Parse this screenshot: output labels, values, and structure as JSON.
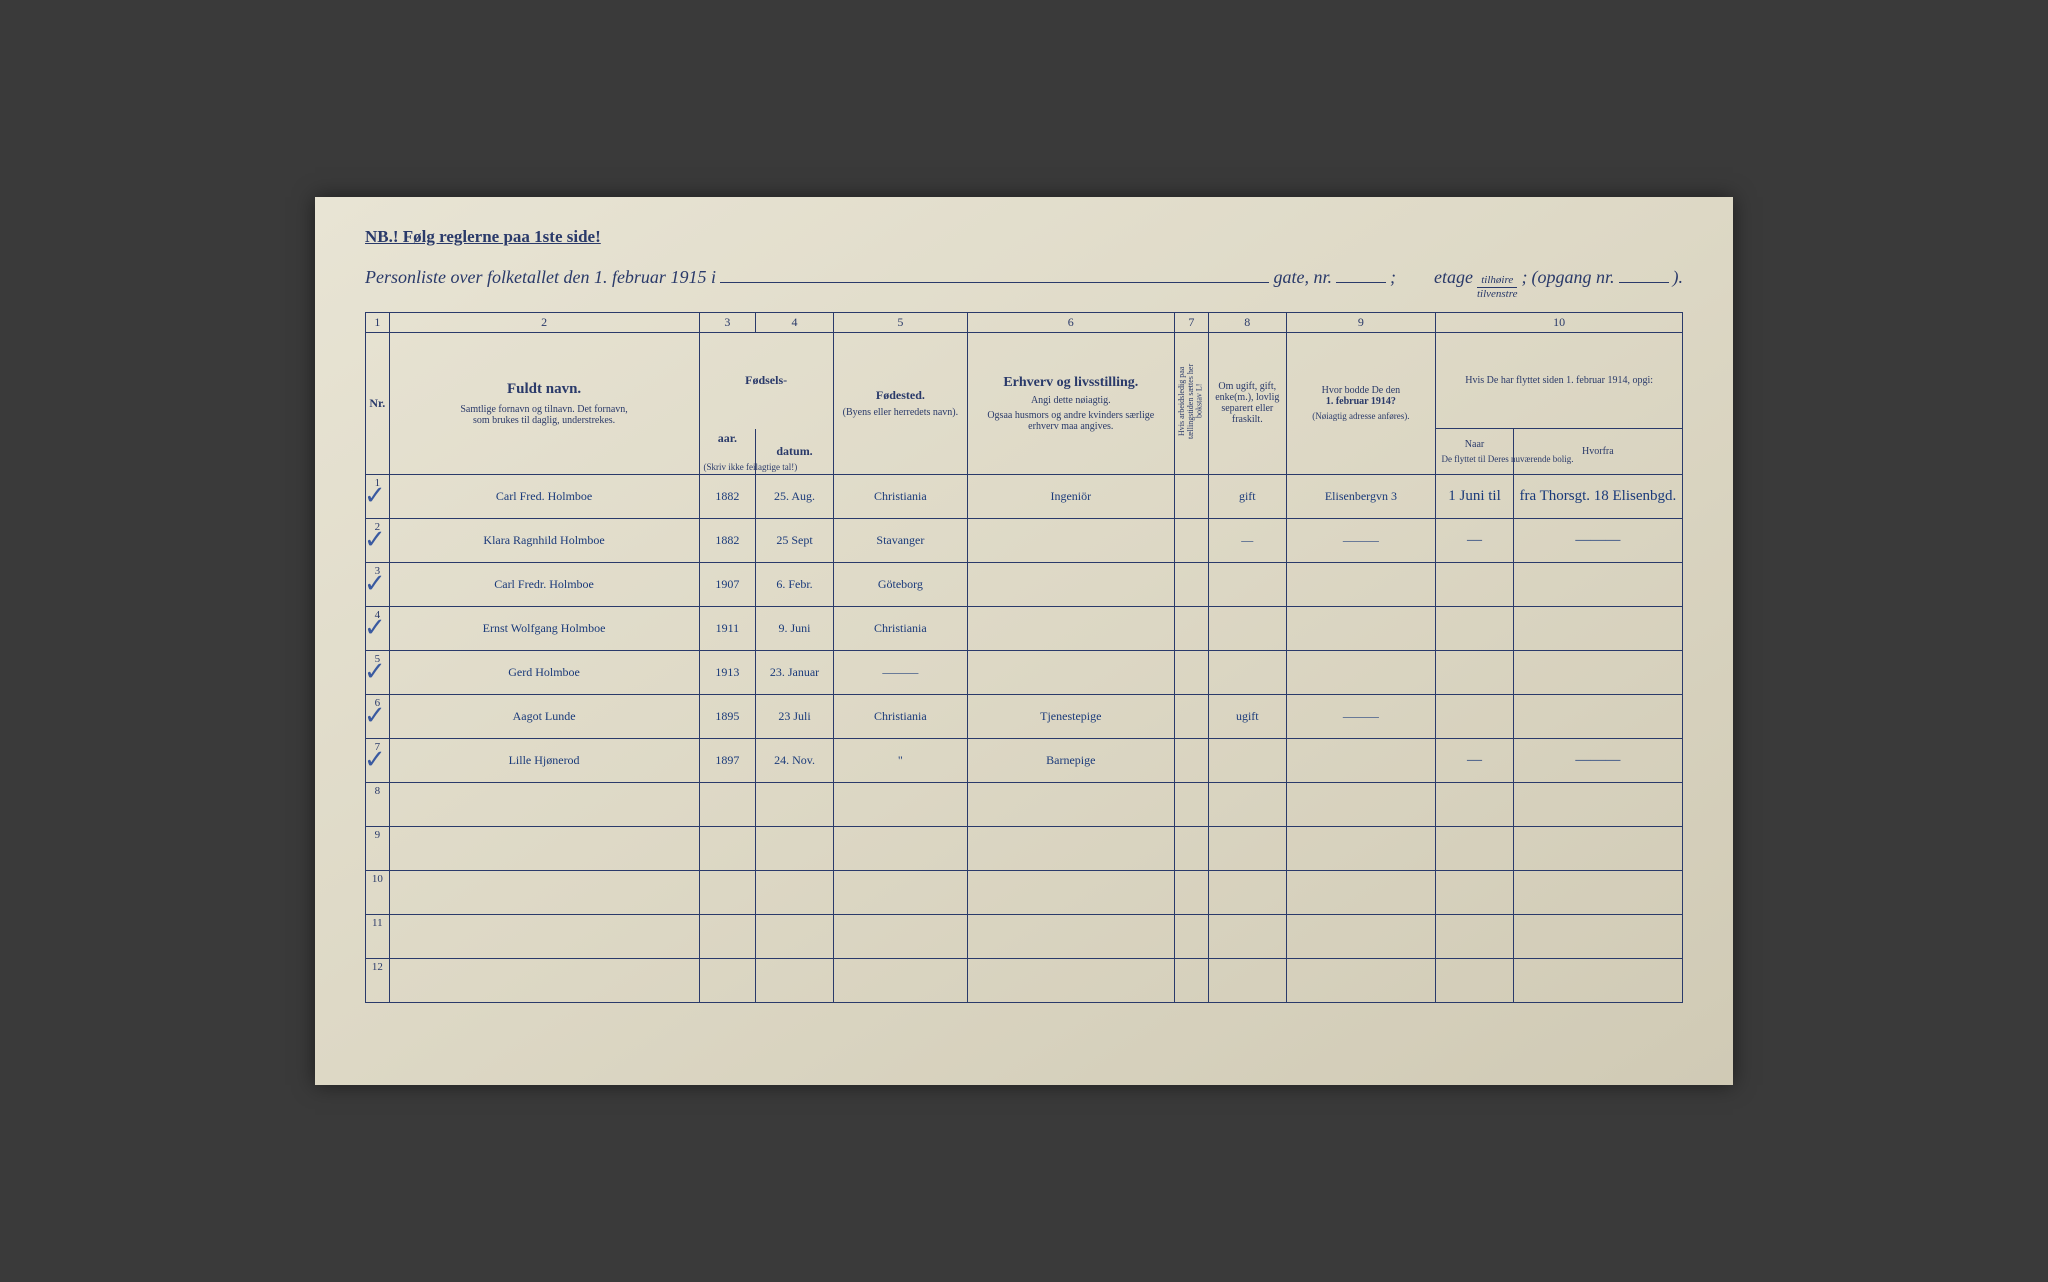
{
  "header": {
    "nb": "NB.! Følg reglerne paa 1ste side!",
    "title_prefix": "Personliste over folketallet den 1. februar 1915 i",
    "gate_label": "gate, nr.",
    "etage_label": "etage",
    "frac_top": "tilhøire",
    "frac_bot": "tilvenstre",
    "opgang_label": "(opgang nr.",
    "opgang_close": ")."
  },
  "columns": {
    "c1": "1",
    "c2": "2",
    "c3": "3",
    "c4": "4",
    "c5": "5",
    "c6": "6",
    "c7": "7",
    "c8": "8",
    "c9": "9",
    "c10": "10",
    "name_head": "Fuldt navn.",
    "name_sub1": "Samtlige fornavn og tilnavn.   Det fornavn,",
    "name_sub2": "som brukes til daglig, understrekes.",
    "birth_head": "Fødsels-",
    "birth_year": "aar.",
    "birth_date": "datum.",
    "birth_note": "(Skriv ikke feilagtige tal!)",
    "birthplace_head": "Fødested.",
    "birthplace_sub": "(Byens eller herredets navn).",
    "occ_head": "Erhverv og livsstilling.",
    "occ_sub1": "Angi dette nøiagtig.",
    "occ_sub2": "Ogsaa husmors og andre kvinders særlige erhverv maa angives.",
    "c7_text": "Hvis arbeidsledig paa tællingstiden sættes her bokstav L!",
    "c8_text1": "Om ugift, gift, enke(m.), lovlig separert eller fraskilt.",
    "c9_text1": "Hvor bodde De den",
    "c9_text2": "1. februar 1914?",
    "c9_text3": "(Nøiagtig adresse anføres).",
    "c10_text1": "Hvis De har flyttet siden 1. februar 1914, opgi:",
    "c10_naar": "Naar",
    "c10_hvorfra": "Hvorfra",
    "c10_sub": "De flyttet til Deres nuværende bolig."
  },
  "rows": [
    {
      "nr": "1",
      "name": "Carl Fred. Holmboe",
      "year": "1882",
      "date": "25. Aug.",
      "birthplace": "Christiania",
      "occ": "Ingeniör",
      "c7": "",
      "status": "gift",
      "addr": "Elisenbergvn 3",
      "naar": "1 Juni til",
      "hvorfra": "fra Thorsgt. 18 Elisenbgd."
    },
    {
      "nr": "2",
      "name": "Klara Ragnhild Holmboe",
      "year": "1882",
      "date": "25 Sept",
      "birthplace": "Stavanger",
      "occ": "",
      "c7": "",
      "status": "—",
      "addr": "———",
      "naar": "—",
      "hvorfra": "———"
    },
    {
      "nr": "3",
      "name": "Carl Fredr. Holmboe",
      "year": "1907",
      "date": "6. Febr.",
      "birthplace": "Göteborg",
      "occ": "",
      "c7": "",
      "status": "",
      "addr": "",
      "naar": "",
      "hvorfra": ""
    },
    {
      "nr": "4",
      "name": "Ernst Wolfgang Holmboe",
      "year": "1911",
      "date": "9. Juni",
      "birthplace": "Christiania",
      "occ": "",
      "c7": "",
      "status": "",
      "addr": "",
      "naar": "",
      "hvorfra": ""
    },
    {
      "nr": "5",
      "name": "Gerd Holmboe",
      "year": "1913",
      "date": "23. Januar",
      "birthplace": "———",
      "occ": "",
      "c7": "",
      "status": "",
      "addr": "",
      "naar": "",
      "hvorfra": ""
    },
    {
      "nr": "6",
      "name": "Aagot Lunde",
      "year": "1895",
      "date": "23 Juli",
      "birthplace": "Christiania",
      "occ": "Tjenestepige",
      "c7": "",
      "status": "ugift",
      "addr": "———",
      "naar": "",
      "hvorfra": ""
    },
    {
      "nr": "7",
      "name": "Lille Hjønerod",
      "year": "1897",
      "date": "24. Nov.",
      "birthplace": "\"",
      "occ": "Barnepige",
      "c7": "",
      "status": "",
      "addr": "",
      "naar": "—",
      "hvorfra": "———"
    },
    {
      "nr": "8"
    },
    {
      "nr": "9"
    },
    {
      "nr": "10"
    },
    {
      "nr": "11"
    },
    {
      "nr": "12"
    }
  ],
  "colors": {
    "ink": "#2a3a6a",
    "handwriting": "#1a3a7a",
    "paper_light": "#e8e4d4",
    "paper_dark": "#d0cab5",
    "background": "#3a3a3a"
  }
}
